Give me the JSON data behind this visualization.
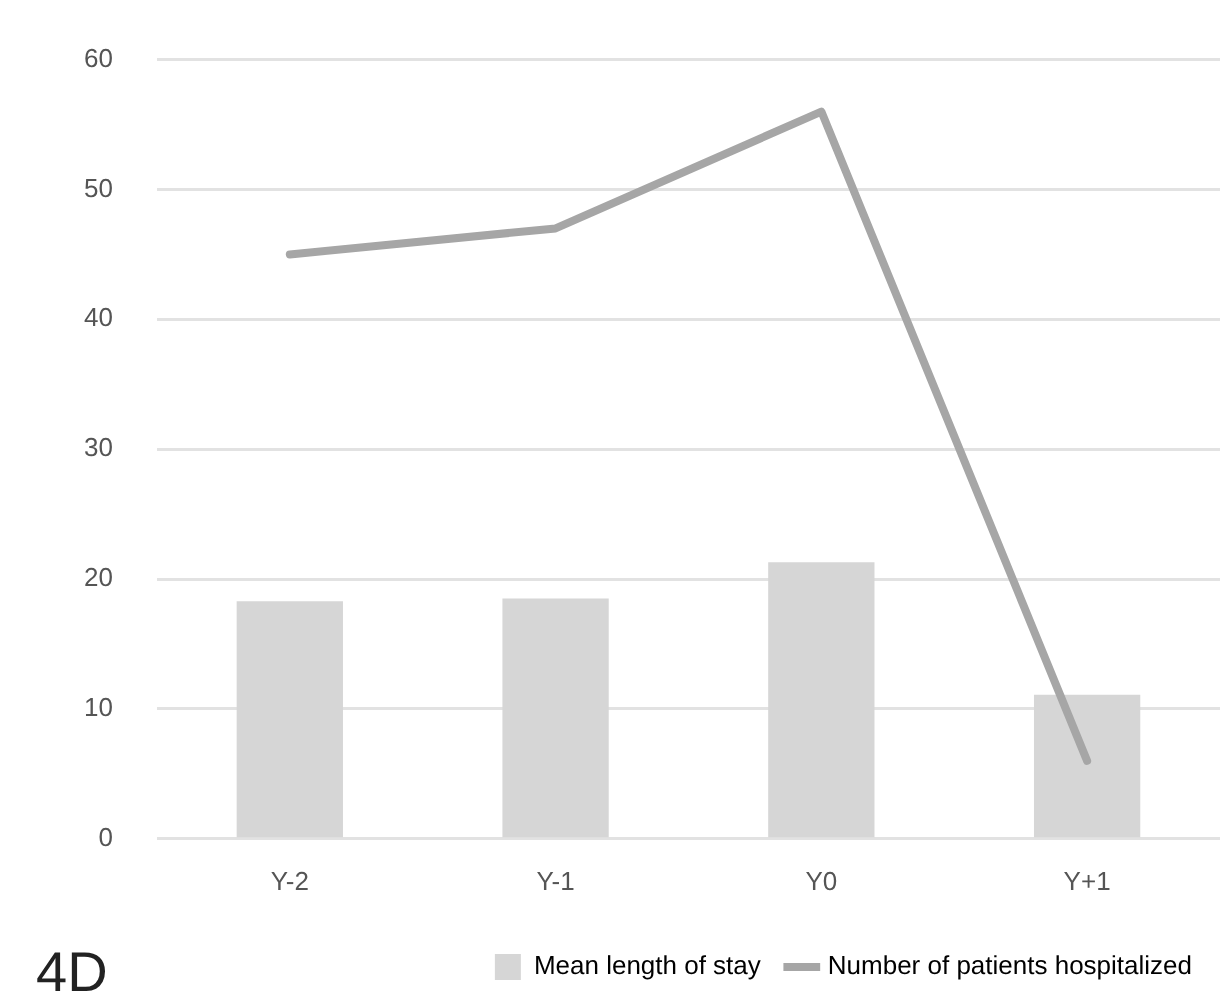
{
  "chart_data": {
    "type": "bar",
    "categories": [
      "Y-2",
      "Y-1",
      "Y0",
      "Y+1"
    ],
    "series": [
      {
        "name": "Mean length of stay",
        "color": "#d6d6d6",
        "values": [
          18.3,
          18.5,
          21.3,
          11.1
        ]
      },
      {
        "name": "Number of patients hospitalized",
        "type": "line",
        "color": "#a6a6a6",
        "values": [
          45,
          47,
          56,
          6
        ]
      }
    ],
    "ylim": [
      0,
      60
    ],
    "yticks": [
      0,
      10,
      20,
      30,
      40,
      50,
      60
    ],
    "grid": "y",
    "legend": "bottom",
    "marker": "none",
    "annotations": [
      "4D"
    ]
  }
}
